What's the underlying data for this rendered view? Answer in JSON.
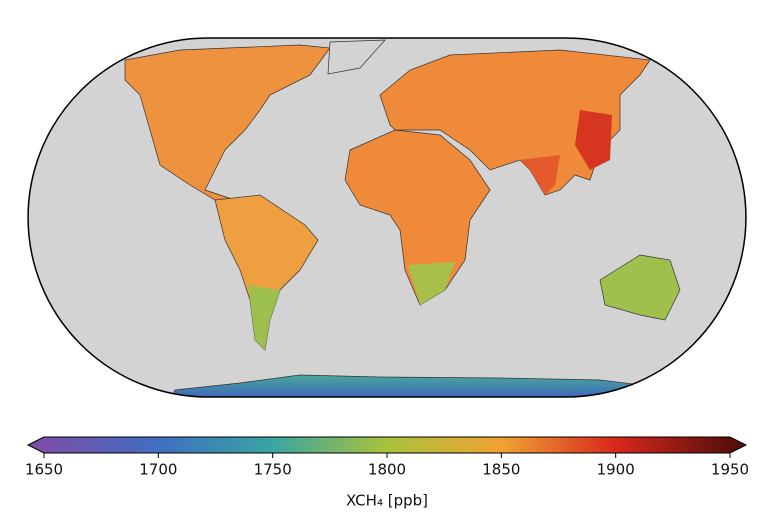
{
  "colorbar": {
    "label": "XCH₄ [ppb]",
    "lim": [
      1650,
      1950
    ],
    "ticks": [
      1650,
      1700,
      1750,
      1800,
      1850,
      1900,
      1950
    ],
    "extend": "both",
    "colors": [
      "#7b4fa8",
      "#3f6fc2",
      "#3aa5a2",
      "#a9c23c",
      "#f0a233",
      "#d8281c",
      "#5a0f0a"
    ]
  }
}
